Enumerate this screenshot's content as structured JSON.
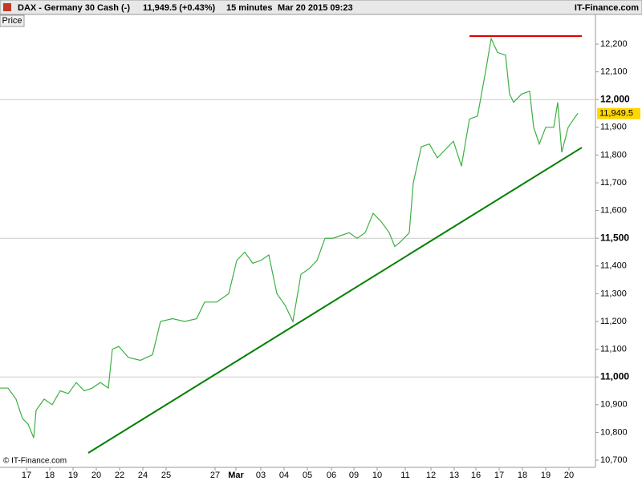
{
  "header": {
    "instrument": "DAX - Germany 30 Cash (-)",
    "quote": "11,949.5 (+0.43%)",
    "interval": "15 minutes",
    "timestamp": "Mar 20 2015 09:23",
    "brand": "IT-Finance.com"
  },
  "tab": "Price",
  "footer": "© IT-Finance.com",
  "chart_data": {
    "type": "line",
    "x": [
      0,
      1,
      2,
      2.8,
      3.5,
      4.2,
      4.5,
      5.5,
      6.5,
      7.5,
      8.5,
      9.5,
      10.5,
      11.5,
      12.5,
      13.5,
      14,
      14.8,
      16,
      17.5,
      19,
      20,
      21.5,
      23,
      24.5,
      25.5,
      27,
      28.5,
      29.5,
      30.5,
      31.5,
      32.5,
      33.5,
      34.5,
      35.5,
      36.5,
      37.5,
      38.5,
      39.5,
      40.5,
      41.5,
      42.5,
      43.5,
      44.5,
      45.5,
      46.5,
      47.5,
      48.5,
      49.2,
      50,
      51,
      51.5,
      52.5,
      53.5,
      54.5,
      55.5,
      56.5,
      57.5,
      58.5,
      59.5,
      60.5,
      61.2,
      62,
      63,
      63.5,
      64,
      65,
      66,
      66.5,
      67.2,
      68,
      69,
      69.5,
      70,
      70.8,
      71.5,
      72
    ],
    "series": [
      {
        "color": "#3cb043",
        "values": [
          10960,
          10960,
          10920,
          10850,
          10830,
          10780,
          10880,
          10920,
          10900,
          10950,
          10940,
          10980,
          10950,
          10960,
          10980,
          10960,
          11100,
          11110,
          11070,
          11060,
          11080,
          11200,
          11210,
          11200,
          11210,
          11270,
          11270,
          11300,
          11420,
          11450,
          11410,
          11420,
          11440,
          11300,
          11260,
          11200,
          11370,
          11390,
          11420,
          11500,
          11500,
          11510,
          11520,
          11500,
          11520,
          11590,
          11560,
          11520,
          11470,
          11490,
          11520,
          11700,
          11830,
          11840,
          11790,
          11820,
          11850,
          11760,
          11930,
          11940,
          12100,
          12220,
          12170,
          12160,
          12020,
          11990,
          12020,
          12030,
          11900,
          11840,
          11900,
          11900,
          11990,
          11810,
          11900,
          11930,
          11950
        ]
      }
    ],
    "xlim": [
      0,
      74.2
    ],
    "xticks": [
      {
        "value": 3.3,
        "label": "17"
      },
      {
        "value": 6.2,
        "label": "18"
      },
      {
        "value": 9.1,
        "label": "19"
      },
      {
        "value": 12,
        "label": "20"
      },
      {
        "value": 14.9,
        "label": "22"
      },
      {
        "value": 17.8,
        "label": "24"
      },
      {
        "value": 20.7,
        "label": "25"
      },
      {
        "value": 26.8,
        "label": "27"
      },
      {
        "value": 29.4,
        "label": "Mar"
      },
      {
        "value": 32.5,
        "label": "03"
      },
      {
        "value": 35.4,
        "label": "04"
      },
      {
        "value": 38.3,
        "label": "05"
      },
      {
        "value": 41.3,
        "label": "06"
      },
      {
        "value": 44.1,
        "label": "09"
      },
      {
        "value": 47,
        "label": "10"
      },
      {
        "value": 50.5,
        "label": "11"
      },
      {
        "value": 53.7,
        "label": "12"
      },
      {
        "value": 56.6,
        "label": "13"
      },
      {
        "value": 59.3,
        "label": "16"
      },
      {
        "value": 62.2,
        "label": "17"
      },
      {
        "value": 65.1,
        "label": "18"
      },
      {
        "value": 68,
        "label": "19"
      },
      {
        "value": 70.9,
        "label": "20"
      }
    ],
    "ylim": [
      10674,
      12307
    ],
    "yticks": [
      {
        "value": 10700,
        "label": "10,700"
      },
      {
        "value": 10800,
        "label": "10,800"
      },
      {
        "value": 10900,
        "label": "10,900"
      },
      {
        "value": 11000,
        "label": "11,000"
      },
      {
        "value": 11100,
        "label": "11,100"
      },
      {
        "value": 11200,
        "label": "11,200"
      },
      {
        "value": 11300,
        "label": "11,300"
      },
      {
        "value": 11400,
        "label": "11,400"
      },
      {
        "value": 11500,
        "label": "11,500"
      },
      {
        "value": 11600,
        "label": "11,600"
      },
      {
        "value": 11700,
        "label": "11,700"
      },
      {
        "value": 11800,
        "label": "11,800"
      },
      {
        "value": 11900,
        "label": "11,900"
      },
      {
        "value": 12000,
        "label": "12,000"
      },
      {
        "value": 12100,
        "label": "12,100"
      },
      {
        "value": 12200,
        "label": "12,200"
      }
    ],
    "grid_ticks": [
      11000,
      11500,
      12000
    ],
    "last_price": {
      "value": 11949.5,
      "label": "11,949.5",
      "color": "#ffd700"
    },
    "trend_lines": [
      {
        "x": [
          11,
          72.5
        ],
        "y": [
          10726,
          11827
        ],
        "color": "#008000"
      },
      {
        "x": [
          58.5,
          72.5
        ],
        "y": [
          12229,
          12229
        ],
        "color": "#e00000"
      }
    ]
  }
}
